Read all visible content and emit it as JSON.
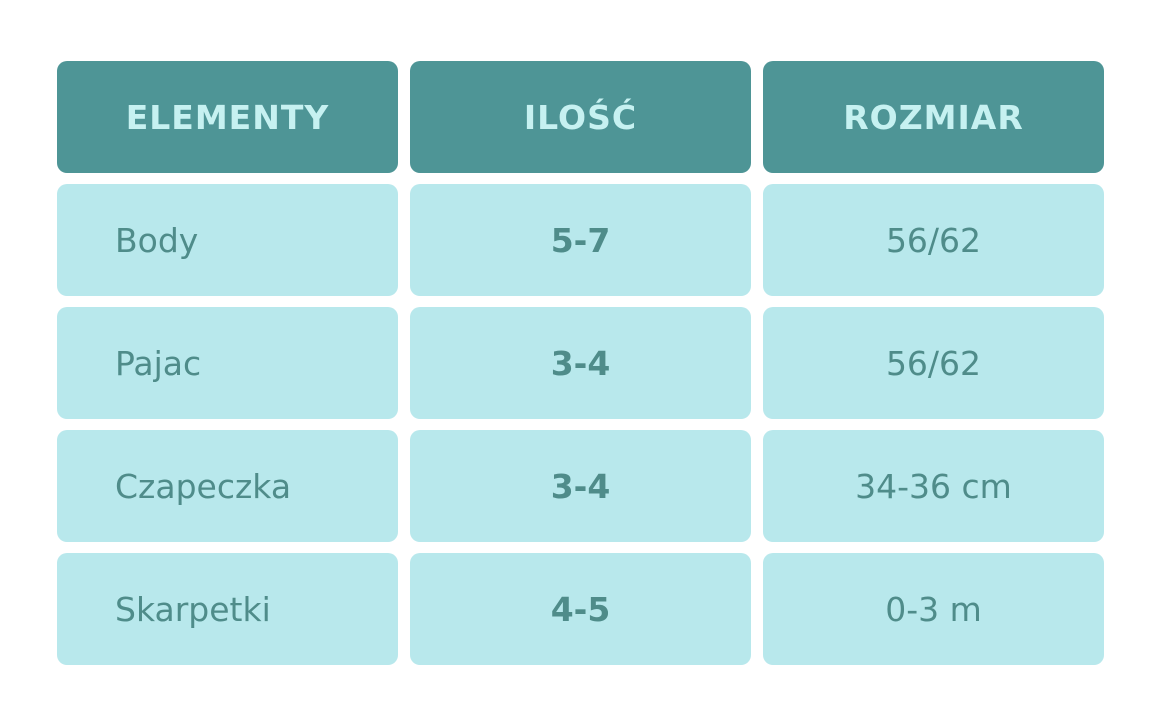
{
  "table": {
    "headers": [
      "ELEMENTY",
      "ILOŚĆ",
      "ROZMIAR"
    ],
    "rows": [
      {
        "element": "Body",
        "quantity": "5-7",
        "size": "56/62"
      },
      {
        "element": "Pajac",
        "quantity": "3-4",
        "size": "56/62"
      },
      {
        "element": "Czapeczka",
        "quantity": "3-4",
        "size": "34-36 cm"
      },
      {
        "element": "Skarpetki",
        "quantity": "4-5",
        "size": "0-3 m"
      }
    ]
  },
  "colors": {
    "header_background": "#4e9596",
    "header_text": "#c6f1f1",
    "cell_background": "#b8e8ec",
    "cell_text": "#4f8c8a"
  }
}
